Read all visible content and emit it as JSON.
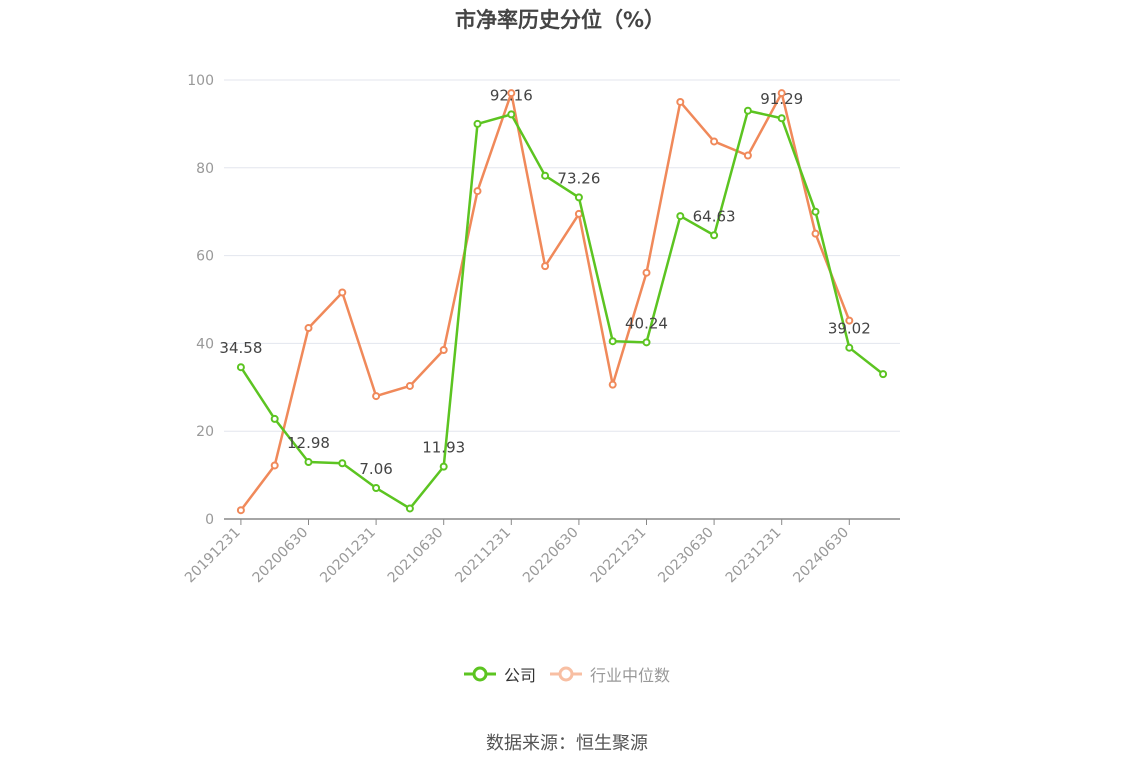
{
  "chart_data": {
    "type": "line",
    "title": "市净率历史分位（%）",
    "x": [
      "20191231",
      "20200331",
      "20200630",
      "20200930",
      "20201231",
      "20210331",
      "20210630",
      "20210930",
      "20211231",
      "20220331",
      "20220630",
      "20220930",
      "20221231",
      "20230331",
      "20230630",
      "20230930",
      "20231231",
      "20240331",
      "20240630",
      "20240930"
    ],
    "x_tick_labels": [
      "20191231",
      "20200630",
      "20201231",
      "20210630",
      "20211231",
      "20220630",
      "20221231",
      "20230630",
      "20231231",
      "20240630"
    ],
    "ylim": [
      0,
      100
    ],
    "y_ticks": [
      "0",
      "20",
      "40",
      "60",
      "80",
      "100"
    ],
    "grid": true,
    "legend_position": "bottom",
    "series": [
      {
        "name": "公司",
        "color": "#5cc421",
        "values": [
          34.58,
          22.8,
          12.98,
          12.7,
          7.06,
          2.4,
          11.93,
          90.0,
          92.16,
          78.2,
          73.26,
          40.5,
          40.24,
          69.0,
          64.63,
          93.0,
          91.29,
          70.0,
          39.02,
          33.0
        ],
        "data_labels": [
          {
            "index": 0,
            "text": "34.58"
          },
          {
            "index": 2,
            "text": "12.98"
          },
          {
            "index": 4,
            "text": "7.06"
          },
          {
            "index": 6,
            "text": "11.93"
          },
          {
            "index": 8,
            "text": "92.16"
          },
          {
            "index": 10,
            "text": "73.26"
          },
          {
            "index": 12,
            "text": "40.24"
          },
          {
            "index": 14,
            "text": "64.63"
          },
          {
            "index": 16,
            "text": "91.29"
          },
          {
            "index": 18,
            "text": "39.02"
          }
        ]
      },
      {
        "name": "行业中位数",
        "color": "#f0895a",
        "values": [
          2.0,
          12.2,
          43.5,
          51.6,
          28.0,
          30.3,
          38.5,
          74.7,
          97.0,
          57.6,
          69.5,
          30.6,
          56.1,
          95.0,
          86.0,
          82.8,
          97.0,
          65.0,
          45.2,
          null
        ]
      }
    ]
  },
  "legend": {
    "items": [
      {
        "label": "公司",
        "color": "#5cc421",
        "text_color": "#333333"
      },
      {
        "label": "行业中位数",
        "color": "#f8bfa3",
        "text_color": "#999999"
      }
    ]
  },
  "source_note": "数据来源：恒生聚源"
}
